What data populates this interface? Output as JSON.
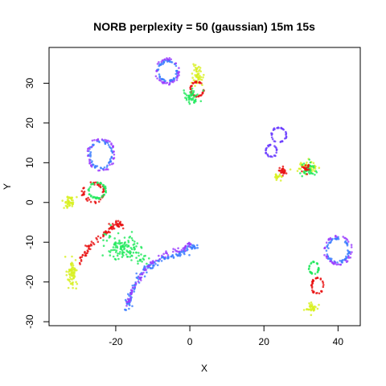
{
  "chart_data": {
    "type": "scatter",
    "title": "NORB perplexity = 50 (gaussian) 15m 15s",
    "xlabel": "X",
    "ylabel": "Y",
    "xlim": [
      -38,
      46
    ],
    "ylim": [
      -31,
      39
    ],
    "x_ticks": [
      -20,
      0,
      20,
      40
    ],
    "y_ticks": [
      -30,
      -20,
      -10,
      0,
      10,
      20,
      30
    ],
    "grid": false,
    "legend": "none",
    "colors": {
      "blue": "#3a7cff",
      "purple": "#9a3cff",
      "violet": "#6a3cff",
      "red": "#e81010",
      "green": "#1ee85a",
      "yellow": "#d8f020"
    },
    "series": [
      {
        "color": "blue",
        "shape": "ring",
        "cx": -6,
        "cy": 33,
        "rx": 2.6,
        "ry": 2.6,
        "n": 60,
        "spread": 0.5
      },
      {
        "color": "purple",
        "shape": "ring",
        "cx": -6,
        "cy": 33,
        "rx": 3.1,
        "ry": 3.1,
        "n": 45,
        "spread": 0.4
      },
      {
        "color": "yellow",
        "shape": "blob",
        "cx": 2,
        "cy": 32,
        "rx": 1.2,
        "ry": 2.0,
        "n": 50
      },
      {
        "color": "red",
        "shape": "ring",
        "cx": 2,
        "cy": 28.5,
        "rx": 1.8,
        "ry": 1.8,
        "n": 40,
        "spread": 0.5
      },
      {
        "color": "green",
        "shape": "blob",
        "cx": 0.5,
        "cy": 26.5,
        "rx": 1.5,
        "ry": 1.5,
        "n": 45
      },
      {
        "color": "blue",
        "shape": "ring",
        "cx": -24,
        "cy": 12,
        "rx": 3.0,
        "ry": 3.6,
        "n": 60,
        "spread": 0.5
      },
      {
        "color": "purple",
        "shape": "ring",
        "cx": -24,
        "cy": 12,
        "rx": 3.6,
        "ry": 4.1,
        "n": 45,
        "spread": 0.4
      },
      {
        "color": "red",
        "shape": "ring",
        "cx": -26,
        "cy": 2.5,
        "rx": 2.8,
        "ry": 2.4,
        "n": 50,
        "spread": 0.6
      },
      {
        "color": "green",
        "shape": "ring",
        "cx": -25,
        "cy": 3,
        "rx": 2.3,
        "ry": 1.9,
        "n": 45,
        "spread": 0.5
      },
      {
        "color": "yellow",
        "shape": "blob",
        "cx": -32.5,
        "cy": 0,
        "rx": 1.2,
        "ry": 1.6,
        "n": 45
      },
      {
        "color": "violet",
        "shape": "ring",
        "cx": 24,
        "cy": 17,
        "rx": 2.0,
        "ry": 1.8,
        "n": 35,
        "spread": 0.4
      },
      {
        "color": "violet",
        "shape": "ring",
        "cx": 22,
        "cy": 13,
        "rx": 1.5,
        "ry": 1.5,
        "n": 30,
        "spread": 0.4
      },
      {
        "color": "red",
        "shape": "blob",
        "cx": 25,
        "cy": 8,
        "rx": 1.0,
        "ry": 0.8,
        "n": 25
      },
      {
        "color": "yellow",
        "shape": "blob",
        "cx": 24,
        "cy": 6.5,
        "rx": 1.0,
        "ry": 0.8,
        "n": 18
      },
      {
        "color": "yellow",
        "shape": "blob",
        "cx": 32,
        "cy": 9,
        "rx": 2.2,
        "ry": 1.5,
        "n": 45
      },
      {
        "color": "green",
        "shape": "blob",
        "cx": 32,
        "cy": 8,
        "rx": 1.8,
        "ry": 1.6,
        "n": 40
      },
      {
        "color": "red",
        "shape": "blob",
        "cx": 31,
        "cy": 8.5,
        "rx": 1.2,
        "ry": 1.2,
        "n": 20
      },
      {
        "color": "blue",
        "shape": "ring",
        "cx": 40,
        "cy": -12,
        "rx": 3.0,
        "ry": 3.0,
        "n": 60,
        "spread": 0.5
      },
      {
        "color": "purple",
        "shape": "ring",
        "cx": 40,
        "cy": -12,
        "rx": 3.6,
        "ry": 3.6,
        "n": 45,
        "spread": 0.4
      },
      {
        "color": "green",
        "shape": "ring",
        "cx": 33.5,
        "cy": -16.5,
        "rx": 1.3,
        "ry": 1.5,
        "n": 35,
        "spread": 0.4
      },
      {
        "color": "red",
        "shape": "ring",
        "cx": 34.5,
        "cy": -21,
        "rx": 1.6,
        "ry": 2.0,
        "n": 35,
        "spread": 0.4
      },
      {
        "color": "yellow",
        "shape": "blob",
        "cx": 33,
        "cy": -26.5,
        "rx": 1.4,
        "ry": 1.2,
        "n": 35
      },
      {
        "color": "red",
        "shape": "arc",
        "pts": [
          [
            -30,
            -15
          ],
          [
            -27,
            -11
          ],
          [
            -23,
            -8
          ],
          [
            -20,
            -5
          ],
          [
            -18,
            -6
          ]
        ],
        "n": 90,
        "spread": 0.8
      },
      {
        "color": "green",
        "shape": "blob",
        "cx": -18,
        "cy": -11.5,
        "rx": 4.0,
        "ry": 3.0,
        "n": 110
      },
      {
        "color": "green",
        "shape": "blob",
        "cx": -13,
        "cy": -14,
        "rx": 1.5,
        "ry": 1.5,
        "n": 15
      },
      {
        "color": "yellow",
        "shape": "blob",
        "cx": -32,
        "cy": -18,
        "rx": 1.4,
        "ry": 3.2,
        "n": 70
      },
      {
        "color": "blue",
        "shape": "arc",
        "pts": [
          [
            -17,
            -27
          ],
          [
            -16,
            -23
          ],
          [
            -14,
            -19
          ],
          [
            -11,
            -16
          ],
          [
            -7,
            -14
          ],
          [
            -3,
            -13
          ],
          [
            0,
            -11.5
          ],
          [
            2,
            -11
          ]
        ],
        "n": 150,
        "spread": 0.8
      },
      {
        "color": "purple",
        "shape": "arc",
        "pts": [
          [
            -17,
            -26
          ],
          [
            -15.5,
            -22
          ],
          [
            -13,
            -18
          ],
          [
            -10,
            -15
          ],
          [
            -6,
            -12.5
          ],
          [
            -2,
            -11.5
          ],
          [
            0,
            -10.5
          ]
        ],
        "n": 80,
        "spread": 0.6
      }
    ]
  }
}
